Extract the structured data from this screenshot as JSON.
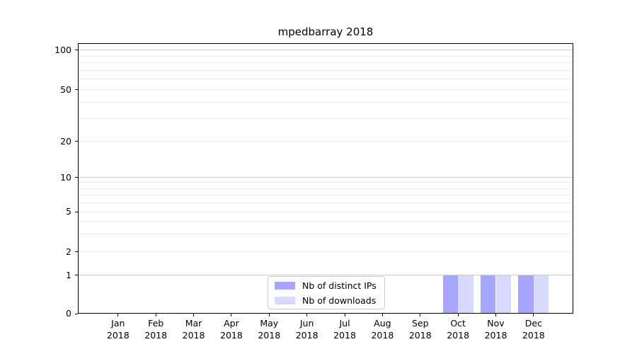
{
  "chart_data": {
    "type": "bar",
    "title": "mpedbarray 2018",
    "xlabel": "",
    "ylabel": "",
    "categories": [
      "Jan",
      "Feb",
      "Mar",
      "Apr",
      "May",
      "Jun",
      "Jul",
      "Aug",
      "Sep",
      "Oct",
      "Nov",
      "Dec"
    ],
    "year_label": "2018",
    "series": [
      {
        "name": "Nb of distinct IPs",
        "color": "#a6a6ff",
        "values": [
          0,
          0,
          0,
          0,
          0,
          0,
          0,
          0,
          0,
          1,
          1,
          1
        ]
      },
      {
        "name": "Nb of downloads",
        "color": "#d9d9ff",
        "values": [
          0,
          0,
          0,
          0,
          0,
          0,
          0,
          0,
          0,
          1,
          1,
          1
        ]
      }
    ],
    "y_scale": "symlog",
    "y_ticks": [
      0,
      1,
      2,
      5,
      10,
      20,
      50,
      100
    ],
    "y_major_gridlines": [
      1,
      10,
      100
    ],
    "y_minor_gridlines": [
      3,
      4,
      6,
      7,
      8,
      9,
      30,
      40,
      60,
      70,
      80,
      90
    ],
    "ylim": [
      0,
      110
    ],
    "grid": "horizontal",
    "legend_position": "lower center"
  }
}
